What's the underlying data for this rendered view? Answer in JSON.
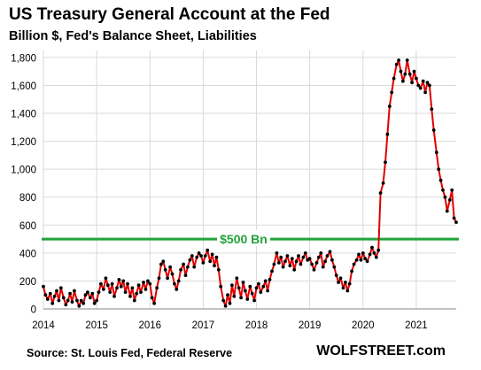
{
  "header": {
    "title": "US Treasury General Account at the Fed",
    "subtitle": "Billion $, Fed's Balance Sheet, Liabilities"
  },
  "footer": {
    "source": "Source: St. Louis Fed, Federal Reserve",
    "brand": "WOLFSTREET.com"
  },
  "colors": {
    "line": "#e00000",
    "marker": "#000000",
    "reference": "#22a33a",
    "grid": "#d9d9d9"
  },
  "chart_data": {
    "type": "line",
    "title": "US Treasury General Account at the Fed",
    "subtitle": "Billion $, Fed's Balance Sheet, Liabilities",
    "xlabel": "",
    "ylabel": "",
    "xlim": [
      2014.0,
      2021.75
    ],
    "ylim": [
      0,
      1850
    ],
    "grid": true,
    "y_ticks": [
      0,
      200,
      400,
      600,
      800,
      1000,
      1200,
      1400,
      1600,
      1800
    ],
    "y_tick_labels": [
      "0",
      "200",
      "400",
      "600",
      "800",
      "1,000",
      "1,200",
      "1,400",
      "1,600",
      "1,800"
    ],
    "x_ticks": [
      2014,
      2015,
      2016,
      2017,
      2018,
      2019,
      2020,
      2021
    ],
    "x_tick_labels": [
      "2014",
      "2015",
      "2016",
      "2017",
      "2018",
      "2019",
      "2020",
      "2021"
    ],
    "reference_line": {
      "y": 500,
      "label": "$500 Bn"
    },
    "series": [
      {
        "points": [
          [
            2014.0,
            160
          ],
          [
            2014.04,
            100
          ],
          [
            2014.08,
            70
          ],
          [
            2014.13,
            110
          ],
          [
            2014.17,
            40
          ],
          [
            2014.21,
            90
          ],
          [
            2014.25,
            130
          ],
          [
            2014.29,
            60
          ],
          [
            2014.33,
            150
          ],
          [
            2014.38,
            80
          ],
          [
            2014.42,
            30
          ],
          [
            2014.46,
            60
          ],
          [
            2014.5,
            110
          ],
          [
            2014.54,
            50
          ],
          [
            2014.58,
            130
          ],
          [
            2014.63,
            60
          ],
          [
            2014.67,
            20
          ],
          [
            2014.71,
            60
          ],
          [
            2014.75,
            40
          ],
          [
            2014.79,
            100
          ],
          [
            2014.83,
            120
          ],
          [
            2014.88,
            80
          ],
          [
            2014.92,
            110
          ],
          [
            2014.96,
            40
          ],
          [
            2015.0,
            60
          ],
          [
            2015.04,
            120
          ],
          [
            2015.08,
            180
          ],
          [
            2015.13,
            140
          ],
          [
            2015.17,
            220
          ],
          [
            2015.21,
            170
          ],
          [
            2015.25,
            120
          ],
          [
            2015.29,
            180
          ],
          [
            2015.33,
            90
          ],
          [
            2015.38,
            150
          ],
          [
            2015.42,
            210
          ],
          [
            2015.46,
            160
          ],
          [
            2015.5,
            200
          ],
          [
            2015.54,
            120
          ],
          [
            2015.58,
            180
          ],
          [
            2015.63,
            90
          ],
          [
            2015.67,
            150
          ],
          [
            2015.71,
            60
          ],
          [
            2015.75,
            110
          ],
          [
            2015.79,
            170
          ],
          [
            2015.83,
            120
          ],
          [
            2015.88,
            190
          ],
          [
            2015.92,
            140
          ],
          [
            2015.96,
            200
          ],
          [
            2016.0,
            180
          ],
          [
            2016.04,
            80
          ],
          [
            2016.08,
            40
          ],
          [
            2016.13,
            150
          ],
          [
            2016.17,
            220
          ],
          [
            2016.21,
            320
          ],
          [
            2016.25,
            340
          ],
          [
            2016.29,
            280
          ],
          [
            2016.33,
            220
          ],
          [
            2016.38,
            300
          ],
          [
            2016.42,
            250
          ],
          [
            2016.46,
            180
          ],
          [
            2016.5,
            140
          ],
          [
            2016.54,
            200
          ],
          [
            2016.58,
            280
          ],
          [
            2016.63,
            320
          ],
          [
            2016.67,
            240
          ],
          [
            2016.71,
            300
          ],
          [
            2016.75,
            350
          ],
          [
            2016.79,
            380
          ],
          [
            2016.83,
            300
          ],
          [
            2016.88,
            370
          ],
          [
            2016.92,
            400
          ],
          [
            2016.96,
            380
          ],
          [
            2017.0,
            330
          ],
          [
            2017.04,
            380
          ],
          [
            2017.08,
            420
          ],
          [
            2017.13,
            340
          ],
          [
            2017.17,
            390
          ],
          [
            2017.21,
            310
          ],
          [
            2017.25,
            370
          ],
          [
            2017.29,
            280
          ],
          [
            2017.33,
            160
          ],
          [
            2017.38,
            60
          ],
          [
            2017.42,
            20
          ],
          [
            2017.46,
            100
          ],
          [
            2017.5,
            40
          ],
          [
            2017.54,
            170
          ],
          [
            2017.58,
            90
          ],
          [
            2017.63,
            220
          ],
          [
            2017.67,
            150
          ],
          [
            2017.71,
            80
          ],
          [
            2017.75,
            190
          ],
          [
            2017.79,
            130
          ],
          [
            2017.83,
            70
          ],
          [
            2017.88,
            160
          ],
          [
            2017.92,
            110
          ],
          [
            2017.96,
            60
          ],
          [
            2018.0,
            150
          ],
          [
            2018.04,
            180
          ],
          [
            2018.08,
            120
          ],
          [
            2018.13,
            160
          ],
          [
            2018.17,
            200
          ],
          [
            2018.21,
            130
          ],
          [
            2018.25,
            210
          ],
          [
            2018.29,
            270
          ],
          [
            2018.33,
            320
          ],
          [
            2018.38,
            400
          ],
          [
            2018.42,
            330
          ],
          [
            2018.46,
            370
          ],
          [
            2018.5,
            300
          ],
          [
            2018.54,
            340
          ],
          [
            2018.58,
            380
          ],
          [
            2018.63,
            310
          ],
          [
            2018.67,
            360
          ],
          [
            2018.71,
            280
          ],
          [
            2018.75,
            340
          ],
          [
            2018.79,
            380
          ],
          [
            2018.83,
            320
          ],
          [
            2018.88,
            370
          ],
          [
            2018.92,
            400
          ],
          [
            2018.96,
            350
          ],
          [
            2019.0,
            360
          ],
          [
            2019.04,
            320
          ],
          [
            2019.08,
            280
          ],
          [
            2019.13,
            330
          ],
          [
            2019.17,
            370
          ],
          [
            2019.21,
            400
          ],
          [
            2019.25,
            300
          ],
          [
            2019.29,
            340
          ],
          [
            2019.33,
            380
          ],
          [
            2019.38,
            410
          ],
          [
            2019.42,
            350
          ],
          [
            2019.46,
            300
          ],
          [
            2019.5,
            240
          ],
          [
            2019.54,
            190
          ],
          [
            2019.58,
            220
          ],
          [
            2019.63,
            150
          ],
          [
            2019.67,
            190
          ],
          [
            2019.71,
            130
          ],
          [
            2019.75,
            180
          ],
          [
            2019.79,
            270
          ],
          [
            2019.83,
            320
          ],
          [
            2019.88,
            350
          ],
          [
            2019.92,
            390
          ],
          [
            2019.96,
            350
          ],
          [
            2020.0,
            400
          ],
          [
            2020.04,
            360
          ],
          [
            2020.08,
            340
          ],
          [
            2020.13,
            390
          ],
          [
            2020.17,
            440
          ],
          [
            2020.21,
            400
          ],
          [
            2020.25,
            370
          ],
          [
            2020.29,
            420
          ],
          [
            2020.33,
            830
          ],
          [
            2020.38,
            900
          ],
          [
            2020.42,
            1050
          ],
          [
            2020.46,
            1250
          ],
          [
            2020.5,
            1450
          ],
          [
            2020.54,
            1550
          ],
          [
            2020.58,
            1650
          ],
          [
            2020.63,
            1750
          ],
          [
            2020.67,
            1780
          ],
          [
            2020.71,
            1700
          ],
          [
            2020.75,
            1630
          ],
          [
            2020.79,
            1680
          ],
          [
            2020.83,
            1780
          ],
          [
            2020.88,
            1680
          ],
          [
            2020.92,
            1620
          ],
          [
            2020.96,
            1700
          ],
          [
            2021.0,
            1650
          ],
          [
            2021.04,
            1600
          ],
          [
            2021.08,
            1580
          ],
          [
            2021.13,
            1630
          ],
          [
            2021.17,
            1550
          ],
          [
            2021.21,
            1620
          ],
          [
            2021.25,
            1600
          ],
          [
            2021.29,
            1430
          ],
          [
            2021.33,
            1280
          ],
          [
            2021.38,
            1120
          ],
          [
            2021.42,
            1000
          ],
          [
            2021.46,
            920
          ],
          [
            2021.5,
            850
          ],
          [
            2021.54,
            800
          ],
          [
            2021.58,
            700
          ],
          [
            2021.63,
            780
          ],
          [
            2021.67,
            850
          ],
          [
            2021.71,
            650
          ],
          [
            2021.75,
            620
          ]
        ]
      }
    ]
  }
}
